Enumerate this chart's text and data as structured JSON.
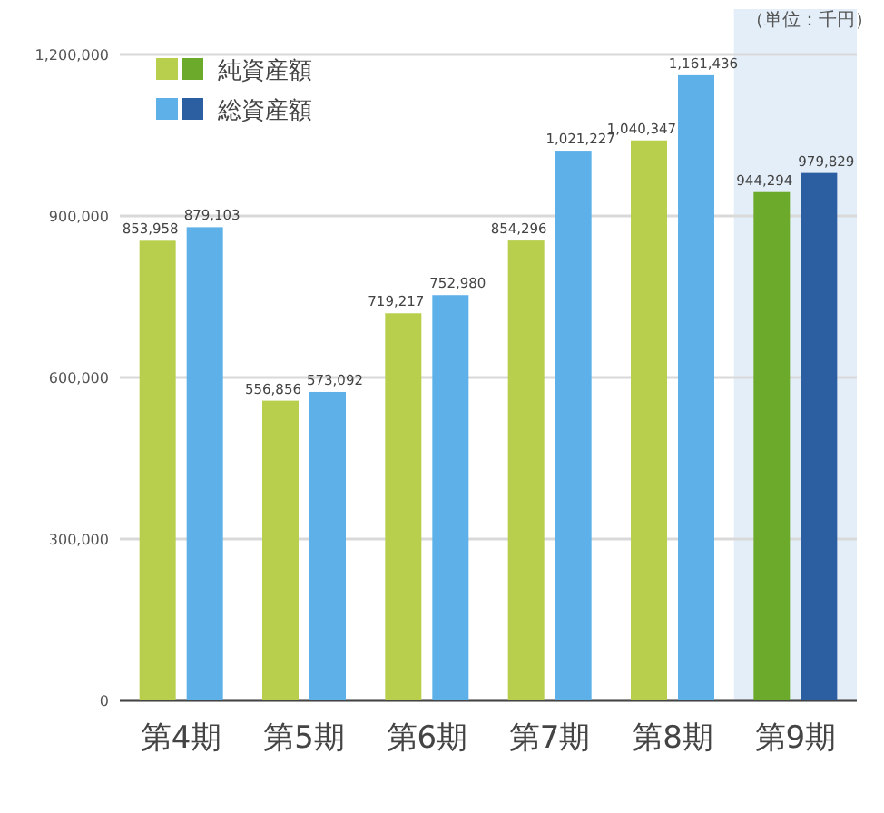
{
  "chart_data": {
    "type": "bar",
    "annotations": [
      "（単位：千円）"
    ],
    "categories": [
      "第4期",
      "第5期",
      "第6期",
      "第7期",
      "第8期",
      "第9期"
    ],
    "series": [
      {
        "name": "純資産額",
        "colors": [
          "#b7cf4c",
          "#b7cf4c",
          "#b7cf4c",
          "#b7cf4c",
          "#b7cf4c",
          "#6caa2c"
        ],
        "values": [
          853958,
          556856,
          719217,
          854296,
          1040347,
          944294
        ],
        "value_labels": [
          "853,958",
          "556,856",
          "719,217",
          "854,296",
          "1,040,347",
          "944,294"
        ]
      },
      {
        "name": "総資産額",
        "colors": [
          "#5eb0e8",
          "#5eb0e8",
          "#5eb0e8",
          "#5eb0e8",
          "#5eb0e8",
          "#2c5fa2"
        ],
        "values": [
          879103,
          573092,
          752980,
          1021227,
          1161436,
          979829
        ],
        "value_labels": [
          "879,103",
          "573,092",
          "752,980",
          "1,021,227",
          "1,161,436",
          "979,829"
        ]
      }
    ],
    "ylim": [
      0,
      1200000
    ],
    "yticks": [
      {
        "value": 0,
        "label": "0"
      },
      {
        "value": 300000,
        "label": "300,000"
      },
      {
        "value": 600000,
        "label": "600,000"
      },
      {
        "value": 900000,
        "label": "900,000"
      },
      {
        "value": 1200000,
        "label": "1,200,000"
      }
    ],
    "grid": "y",
    "legend": "top left",
    "bands": [
      {
        "axis": "x",
        "from": "第9期",
        "to": "第9期",
        "color": "#e3eef8"
      }
    ]
  }
}
